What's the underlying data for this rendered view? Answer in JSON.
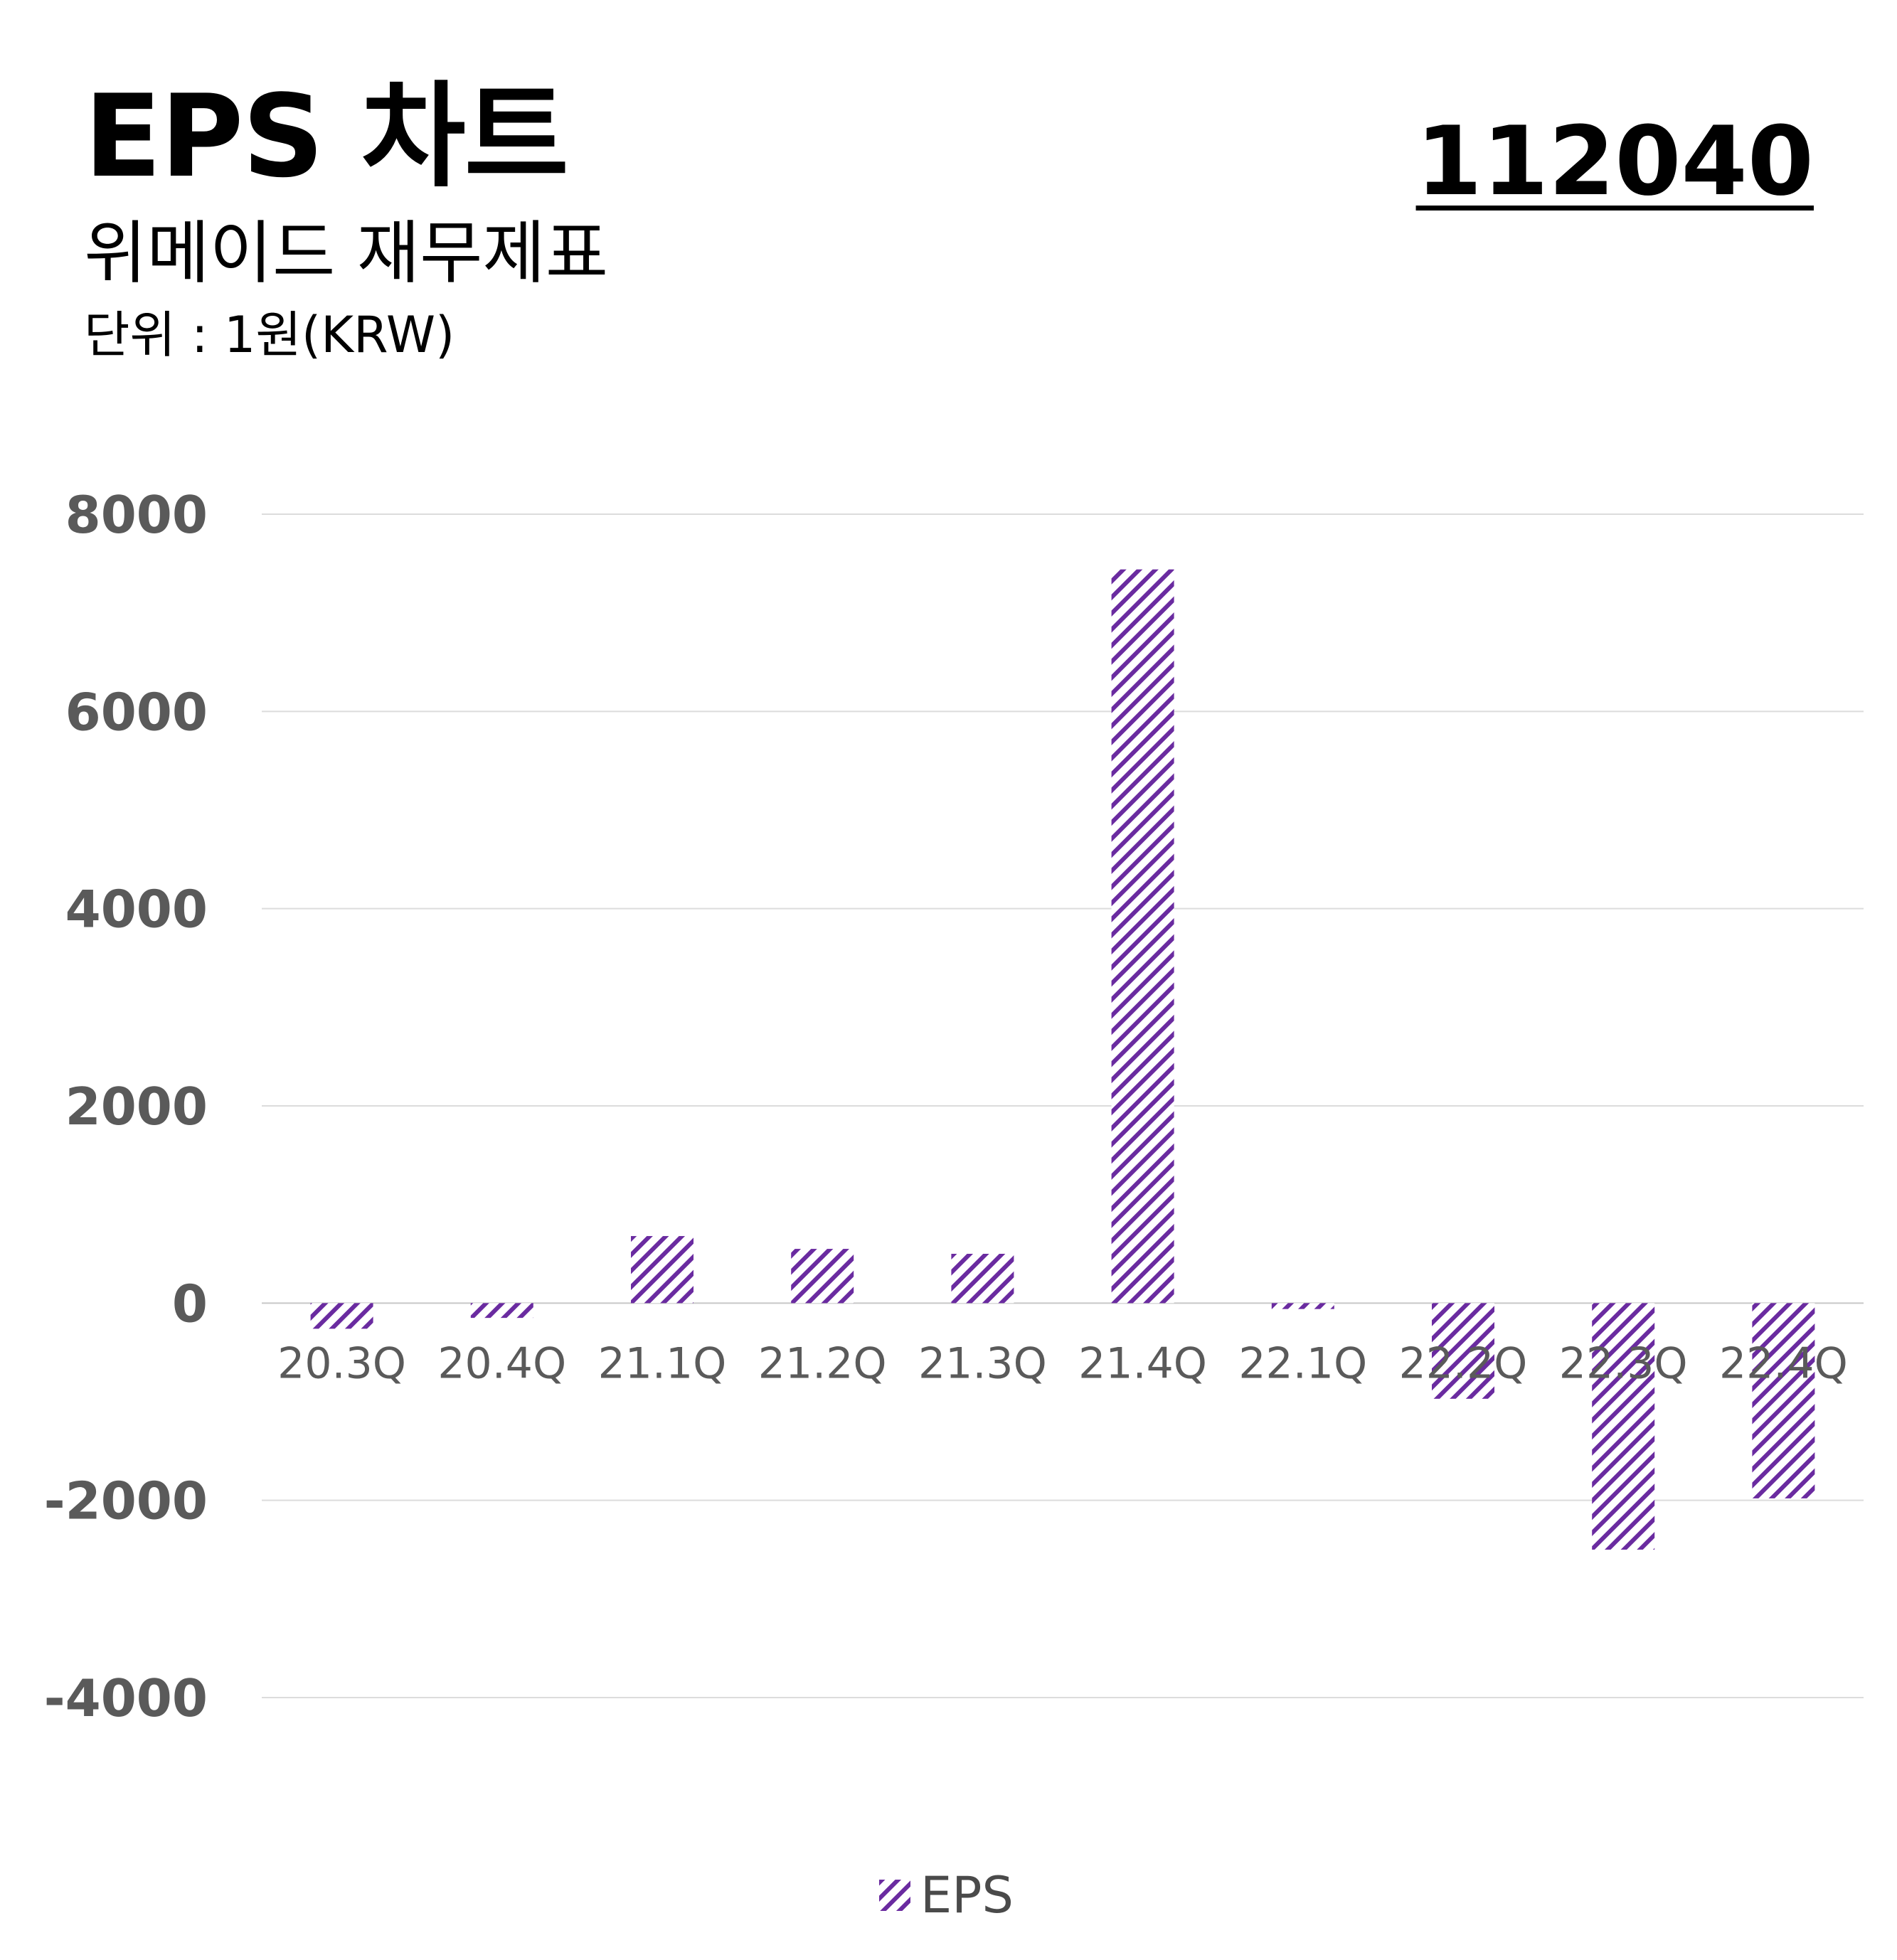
{
  "header": {
    "title": "EPS 차트",
    "subtitle": "위메이드 재무제표",
    "unit": "단위 : 1원(KRW)",
    "code": "112040"
  },
  "colors": {
    "bar": "#6a2ba0",
    "grid": "#dcdcdc",
    "tick": "#5a5a5a"
  },
  "chart_data": {
    "type": "bar",
    "categories": [
      "20.3Q",
      "20.4Q",
      "21.1Q",
      "21.2Q",
      "21.3Q",
      "21.4Q",
      "22.1Q",
      "22.2Q",
      "22.3Q",
      "22.4Q"
    ],
    "series": [
      {
        "name": "EPS",
        "values": [
          -260,
          -150,
          680,
          550,
          500,
          7440,
          -60,
          -970,
          -2500,
          -1980
        ]
      }
    ],
    "ylim": [
      -4000,
      8000
    ],
    "yticks": [
      8000,
      6000,
      4000,
      2000,
      0,
      -2000,
      -4000
    ],
    "grid": true,
    "legend": "bottom-center",
    "bar_fill": "diagonal hatch"
  }
}
